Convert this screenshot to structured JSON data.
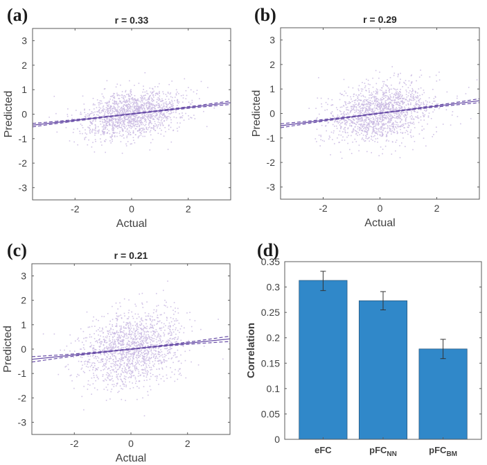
{
  "chart_data": [
    {
      "panel": "(a)",
      "type": "scatter",
      "title": "r = 0.33",
      "xlabel": "Actual",
      "ylabel": "Predicted",
      "xlim": [
        -3.5,
        3.5
      ],
      "ylim": [
        -3.5,
        3.5
      ],
      "xticks": [
        -2,
        0,
        2
      ],
      "yticks": [
        -3,
        -2,
        -1,
        0,
        1,
        2,
        3
      ],
      "grid": false,
      "point_color": "#c9b9e2",
      "line_color": "#6a4fa8",
      "points_summary": {
        "count": 1500,
        "x_mean": 0,
        "x_std": 0.9,
        "y_std": 0.5,
        "correlation": 0.33
      },
      "fit": {
        "slope": 0.131,
        "intercept": 0.01,
        "ci_halfwidth_at_edges": 0.07
      }
    },
    {
      "panel": "(b)",
      "type": "scatter",
      "title": "r = 0.29",
      "xlabel": "Actual",
      "ylabel": "Predicted",
      "xlim": [
        -3.5,
        3.5
      ],
      "ylim": [
        -3.5,
        3.5
      ],
      "xticks": [
        -2,
        0,
        2
      ],
      "yticks": [
        -3,
        -2,
        -1,
        0,
        1,
        2,
        3
      ],
      "grid": false,
      "point_color": "#c9b9e2",
      "line_color": "#6a4fa8",
      "points_summary": {
        "count": 1500,
        "x_mean": 0,
        "x_std": 0.9,
        "y_std": 0.6,
        "correlation": 0.29
      },
      "fit": {
        "slope": 0.146,
        "intercept": 0.01,
        "ci_halfwidth_at_edges": 0.08
      }
    },
    {
      "panel": "(c)",
      "type": "scatter",
      "title": "r = 0.21",
      "xlabel": "Actual",
      "ylabel": "Predicted",
      "xlim": [
        -3.5,
        3.5
      ],
      "ylim": [
        -3.5,
        3.5
      ],
      "xticks": [
        -2,
        0,
        2
      ],
      "yticks": [
        -3,
        -2,
        -1,
        0,
        1,
        2,
        3
      ],
      "grid": false,
      "point_color": "#c9b9e2",
      "line_color": "#6a4fa8",
      "points_summary": {
        "count": 1500,
        "x_mean": 0,
        "x_std": 0.9,
        "y_std": 0.75,
        "correlation": 0.21
      },
      "fit": {
        "slope": 0.12,
        "intercept": 0.0,
        "ci_halfwidth_at_edges": 0.11
      }
    },
    {
      "panel": "(d)",
      "type": "bar",
      "title": "",
      "xlabel": "",
      "ylabel": "Correlation",
      "categories": [
        {
          "base": "pFC",
          "sub": "",
          "label": "eFC"
        },
        {
          "base": "pFC",
          "sub": "NN",
          "label": "pFCNN"
        },
        {
          "base": "pFC",
          "sub": "BM",
          "label": "pFCBM"
        }
      ],
      "category_display": [
        {
          "main": "eFC",
          "sub": ""
        },
        {
          "main": "pFC",
          "sub": "NN"
        },
        {
          "main": "pFC",
          "sub": "BM"
        }
      ],
      "values": [
        0.313,
        0.273,
        0.178
      ],
      "error_low": [
        0.293,
        0.255,
        0.159
      ],
      "error_high": [
        0.331,
        0.291,
        0.197
      ],
      "ylim": [
        0,
        0.35
      ],
      "yticks": [
        0,
        0.05,
        0.1,
        0.15,
        0.2,
        0.25,
        0.3,
        0.35
      ],
      "ytick_labels": [
        "0",
        "0.05",
        "0.1",
        "0.15",
        "0.2",
        "0.25",
        "0.3",
        "0.35"
      ],
      "grid": false,
      "bar_color": "#3088c9"
    }
  ]
}
